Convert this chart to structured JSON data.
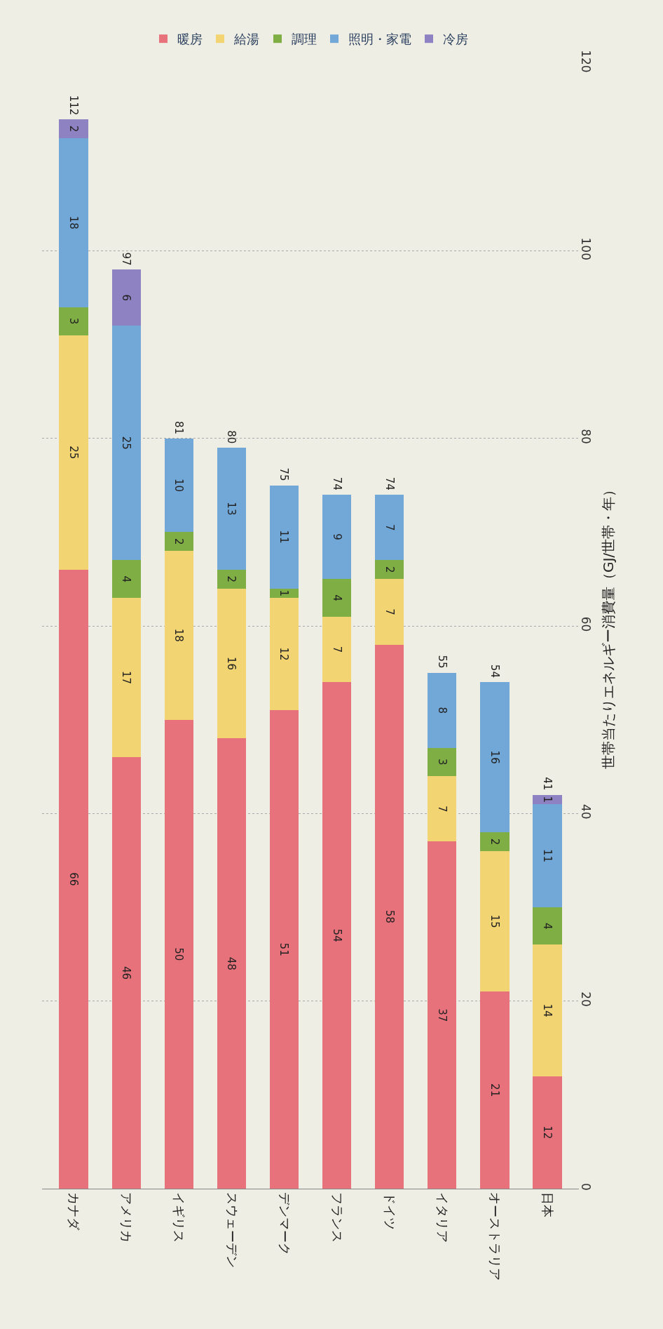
{
  "chart_data": {
    "type": "bar",
    "stacked": true,
    "ylabel": "世帯当たりエネルギー消費量（GJ/世帯・年）",
    "categories": [
      "カナダ",
      "アメリカ",
      "イギリス",
      "スウェーデン",
      "デンマーク",
      "フランス",
      "ドイツ",
      "イタリア",
      "オーストラリア",
      "日本"
    ],
    "series": [
      {
        "name": "暖房",
        "color": "#e8727c",
        "values": [
          66,
          46,
          50,
          48,
          51,
          54,
          58,
          37,
          21,
          12
        ]
      },
      {
        "name": "給湯",
        "color": "#f3d472",
        "values": [
          25,
          17,
          18,
          16,
          12,
          7,
          7,
          7,
          15,
          14
        ]
      },
      {
        "name": "調理",
        "color": "#7fae45",
        "values": [
          3,
          4,
          2,
          2,
          1,
          4,
          2,
          3,
          2,
          4
        ]
      },
      {
        "name": "照明・家電",
        "color": "#72a8d8",
        "values": [
          18,
          25,
          10,
          13,
          11,
          9,
          7,
          8,
          16,
          11
        ]
      },
      {
        "name": "冷房",
        "color": "#8e82c2",
        "values": [
          2,
          6,
          null,
          null,
          null,
          null,
          null,
          null,
          null,
          1
        ]
      }
    ],
    "totals": [
      "112",
      "97",
      "81",
      "80",
      "75",
      "74",
      "74",
      "55",
      "54",
      "41"
    ],
    "data_labels": true,
    "ylim": [
      0,
      120
    ],
    "yticks": [
      0,
      20,
      40,
      60,
      80,
      100,
      120
    ],
    "grid": "y",
    "legend": "top"
  }
}
